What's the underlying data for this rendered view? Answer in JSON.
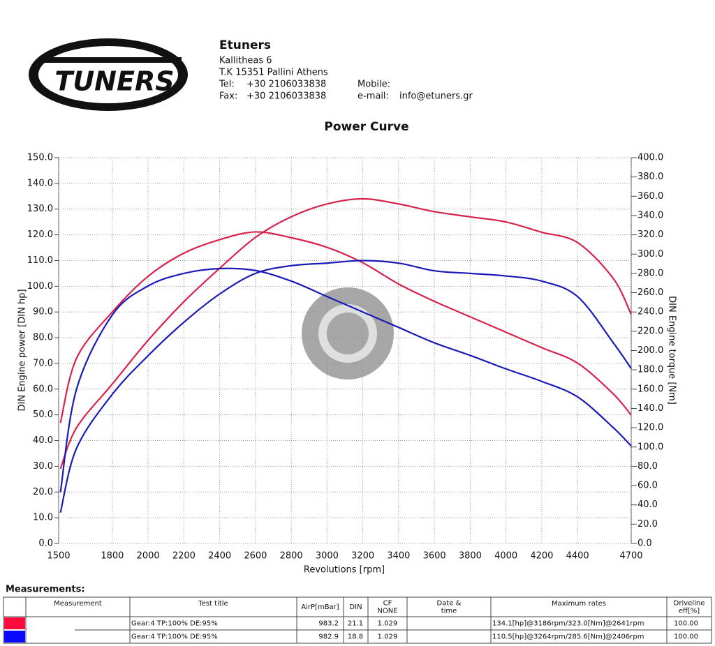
{
  "header": {
    "logo_text": "TUNERS",
    "company": "Etuners",
    "address1": "Kallitheas 6",
    "address2": "T.K 15351 Pallini Athens",
    "tel_label": "Tel:",
    "tel": "+30 2106033838",
    "fax_label": "Fax:",
    "fax": "+30 2106033838",
    "mobile_label": "Mobile:",
    "email_label": "e-mail:",
    "email": "info@etuners.gr"
  },
  "chart_data": {
    "type": "line",
    "title": "Power Curve",
    "x_label": "Revolutions [rpm]",
    "y_label": "DIN Engine power [DIN hp]",
    "y2_label": "DIN Engine torque [Nm]",
    "x": [
      1510,
      1600,
      1800,
      2000,
      2200,
      2400,
      2600,
      2800,
      3000,
      3200,
      3400,
      3600,
      3800,
      4000,
      4200,
      4400,
      4600,
      4700
    ],
    "series": [
      {
        "color": "#d8224a",
        "values": [
          29,
          45,
          62,
          79,
          94,
          107,
          119,
          127,
          132,
          134,
          132,
          129,
          127,
          125,
          121,
          117,
          103,
          89
        ]
      },
      {
        "color": "#d8224a",
        "axis": "y2",
        "values": [
          125,
          192,
          240,
          277,
          301,
          315,
          323,
          317,
          307,
          291,
          269,
          251,
          235,
          219,
          203,
          187,
          155,
          133
        ]
      },
      {
        "color": "#1a1ab8",
        "values": [
          12,
          37,
          58,
          73,
          86,
          97,
          105,
          108,
          109,
          110,
          109,
          106,
          105,
          104,
          102,
          96,
          78,
          68
        ]
      },
      {
        "color": "#1a1ab8",
        "axis": "y2",
        "values": [
          53,
          160,
          237,
          267,
          280,
          285,
          283,
          272,
          256,
          240,
          224,
          208,
          195,
          181,
          168,
          152,
          120,
          101
        ]
      }
    ],
    "xlim": [
      1500,
      4700
    ],
    "xticks": [
      1500,
      1800,
      2000,
      2200,
      2400,
      2600,
      2800,
      3000,
      3200,
      3400,
      3600,
      3800,
      4000,
      4200,
      4400,
      4700
    ],
    "ylim": [
      0,
      150
    ],
    "yticks": [
      {
        "value": 0,
        "label": "0.0"
      },
      {
        "value": 10,
        "label": "10.0"
      },
      {
        "value": 20,
        "label": "20.0"
      },
      {
        "value": 30,
        "label": "30.0"
      },
      {
        "value": 40,
        "label": "40.0"
      },
      {
        "value": 50,
        "label": "50.0"
      },
      {
        "value": 60,
        "label": "60.0"
      },
      {
        "value": 70,
        "label": "70.0"
      },
      {
        "value": 80,
        "label": "80.0"
      },
      {
        "value": 90,
        "label": "90.0"
      },
      {
        "value": 100,
        "label": "100.0"
      },
      {
        "value": 110,
        "label": "110.0"
      },
      {
        "value": 120,
        "label": "120.0"
      },
      {
        "value": 130,
        "label": "130.0"
      },
      {
        "value": 140,
        "label": "140.0"
      },
      {
        "value": 150,
        "label": "150.0"
      }
    ],
    "y2lim": [
      0,
      400
    ],
    "y2ticks": [
      {
        "value": 0,
        "label": "0.0"
      },
      {
        "value": 20,
        "label": "20.0"
      },
      {
        "value": 40,
        "label": "40.0"
      },
      {
        "value": 60,
        "label": "60.0"
      },
      {
        "value": 80,
        "label": "80.0"
      },
      {
        "value": 100,
        "label": "100.0"
      },
      {
        "value": 120,
        "label": "120.0"
      },
      {
        "value": 140,
        "label": "140.0"
      },
      {
        "value": 160,
        "label": "160.0"
      },
      {
        "value": 180,
        "label": "180.0"
      },
      {
        "value": 200,
        "label": "200.0"
      },
      {
        "value": 220,
        "label": "220.0"
      },
      {
        "value": 240,
        "label": "240.0"
      },
      {
        "value": 260,
        "label": "260.0"
      },
      {
        "value": 280,
        "label": "280.0"
      },
      {
        "value": 300,
        "label": "300.0"
      },
      {
        "value": 320,
        "label": "320.0"
      },
      {
        "value": 340,
        "label": "340.0"
      },
      {
        "value": 360,
        "label": "360.0"
      },
      {
        "value": 380,
        "label": "380.0"
      },
      {
        "value": 400,
        "label": "400.0"
      }
    ],
    "grid": true
  },
  "table": {
    "title": "Measurements:",
    "columns": [
      "Measurement",
      "Test title",
      "AirP[mBar]",
      "DIN",
      "CF\nNONE",
      "Date &\ntime",
      "Maximum rates",
      "Driveline\neff[%]"
    ],
    "rows": [
      {
        "color": "#ff0a3c",
        "test_title": "Gear:4 TP:100% DE:95%",
        "airp": "983.2",
        "din": "21.1",
        "cf": "1.029",
        "max_rates": "134.1[hp]@3186rpm/323.0[Nm]@2641rpm",
        "driveline": "100.00"
      },
      {
        "color": "#0a0aff",
        "test_title": "Gear:4 TP:100% DE:95%",
        "airp": "982.9",
        "din": "18.8",
        "cf": "1.029",
        "max_rates": "110.5[hp]@3264rpm/285.6[Nm]@2406rpm",
        "driveline": "100.00"
      }
    ]
  }
}
